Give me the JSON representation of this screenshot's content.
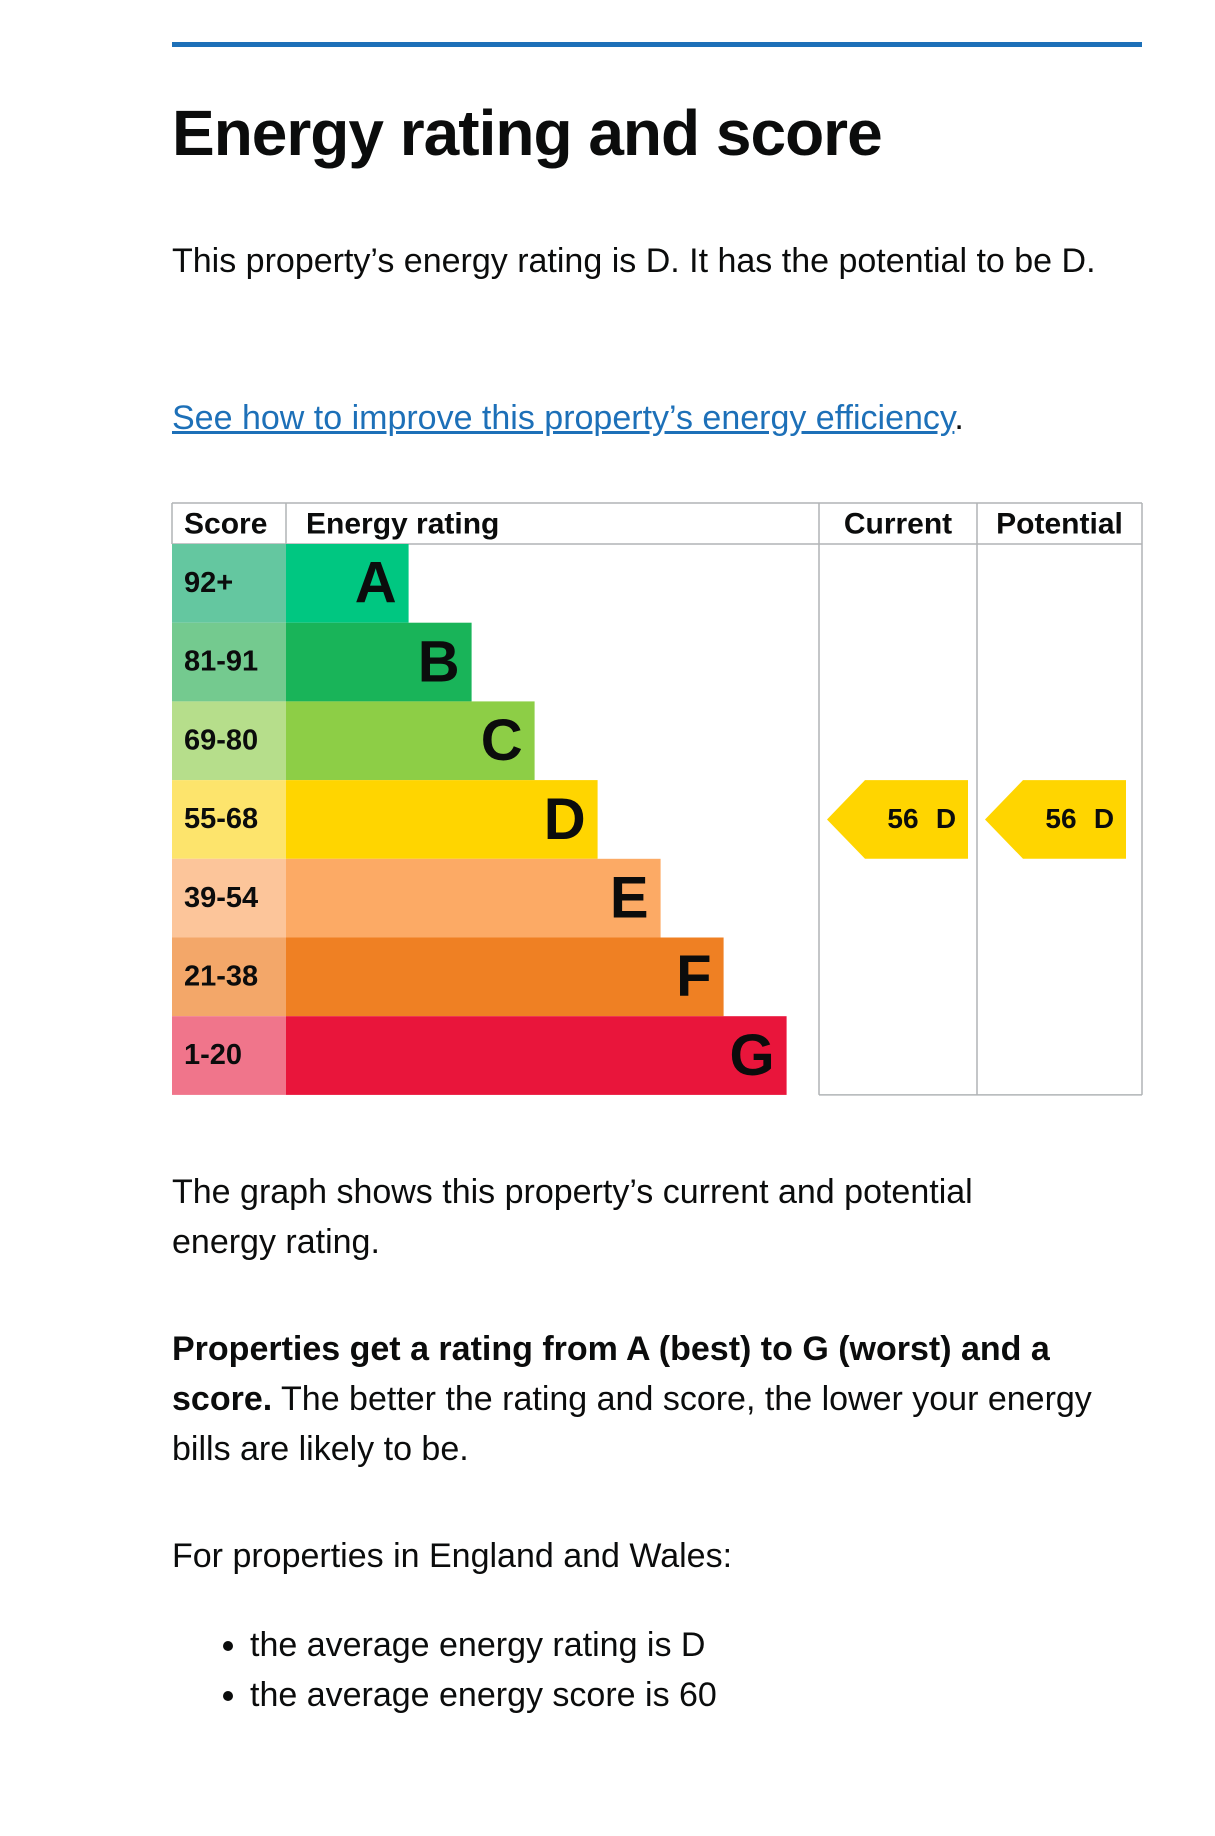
{
  "title": "Energy rating and score",
  "intro": "This property’s energy rating is D. It has the potential to be D.",
  "link": "See how to improve this property’s energy efficiency",
  "link_end": ".",
  "epc": {
    "headers": {
      "score": "Score",
      "rating": "Energy rating",
      "current": "Current",
      "potential": "Potential"
    },
    "bands": [
      {
        "score": "92+",
        "letter": "A",
        "color": "#00c781",
        "score_color": "#64c7a0"
      },
      {
        "score": "81-91",
        "letter": "B",
        "color": "#19b459",
        "score_color": "#74ca8f"
      },
      {
        "score": "69-80",
        "letter": "C",
        "color": "#8dce46",
        "score_color": "#b6de8b"
      },
      {
        "score": "55-68",
        "letter": "D",
        "color": "#ffd500",
        "score_color": "#fde46c"
      },
      {
        "score": "39-54",
        "letter": "E",
        "color": "#fcaa65",
        "score_color": "#fcc59a"
      },
      {
        "score": "21-38",
        "letter": "F",
        "color": "#ef8023",
        "score_color": "#f3a769"
      },
      {
        "score": "1-20",
        "letter": "G",
        "color": "#e9153b",
        "score_color": "#f0758b"
      }
    ],
    "current": {
      "score": 56,
      "letter": "D"
    },
    "potential": {
      "score": 56,
      "letter": "D"
    }
  },
  "graph_text": "The graph shows this property’s current and potential energy rating.",
  "rating_bold": "Properties get a rating from A (best) to G (worst) and a score.",
  "rating_rest": " The better the rating and score, the lower your energy bills are likely to be.",
  "region_intro": "For properties in England and Wales:",
  "bullets": [
    "the average energy rating is D",
    "the average energy score is 60"
  ]
}
